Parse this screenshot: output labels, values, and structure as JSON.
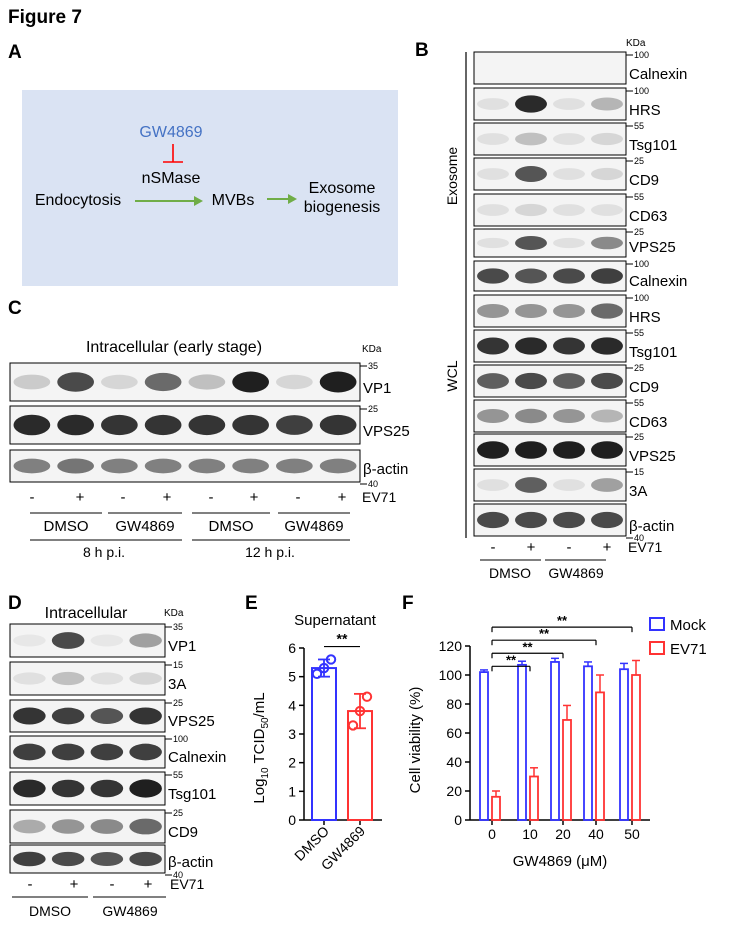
{
  "figure_title": "Figure 7",
  "panels": {
    "A": "A",
    "B": "B",
    "C": "C",
    "D": "D",
    "E": "E",
    "F": "F"
  },
  "panelA": {
    "inhibitor": "GW4869",
    "enzyme": "nSMase",
    "start": "Endocytosis",
    "middle": "MVBs",
    "end_line1": "Exosome",
    "end_line2": "biogenesis",
    "colors": {
      "box": "#dae3f3",
      "inhibitor": "#4472c4",
      "arrow": "#70ad47",
      "inhibit": "#ff0000"
    }
  },
  "panelB": {
    "kda": "KDa",
    "group_exosome": "Exosome",
    "group_wcl": "WCL",
    "rows": [
      {
        "label": "Calnexin",
        "marker": "100"
      },
      {
        "label": "HRS",
        "marker": "100"
      },
      {
        "label": "Tsg101",
        "marker": "55"
      },
      {
        "label": "CD9",
        "marker": "25"
      },
      {
        "label": "CD63",
        "marker": "55"
      },
      {
        "label": "VPS25",
        "marker": "25"
      },
      {
        "label": "Calnexin",
        "marker": "100"
      },
      {
        "label": "HRS",
        "marker": "100"
      },
      {
        "label": "Tsg101",
        "marker": "55"
      },
      {
        "label": "CD9",
        "marker": "25"
      },
      {
        "label": "CD63",
        "marker": "55"
      },
      {
        "label": "VPS25",
        "marker": "25"
      },
      {
        "label": "3A",
        "marker": "15"
      },
      {
        "label": "β-actin",
        "marker": "40"
      }
    ],
    "lanes": [
      "-",
      "+",
      "-",
      "+"
    ],
    "virus": "EV71",
    "groups": [
      "DMSO",
      "GW4869"
    ]
  },
  "panelC": {
    "title": "Intracellular (early stage)",
    "kda": "KDa",
    "rows": [
      {
        "label": "VP1",
        "marker": "35"
      },
      {
        "label": "VPS25",
        "marker": "25"
      },
      {
        "label": "β-actin",
        "marker": "40"
      }
    ],
    "lanes": [
      "-",
      "+",
      "-",
      "+",
      "-",
      "+",
      "-",
      "+"
    ],
    "virus": "EV71",
    "groups": [
      "DMSO",
      "GW4869",
      "DMSO",
      "GW4869"
    ],
    "times": [
      "8 h p.i.",
      "12 h p.i."
    ]
  },
  "panelD": {
    "title": "Intracellular",
    "kda": "KDa",
    "rows": [
      {
        "label": "VP1",
        "marker": "35"
      },
      {
        "label": "3A",
        "marker": "15"
      },
      {
        "label": "VPS25",
        "marker": "25"
      },
      {
        "label": "Calnexin",
        "marker": "100"
      },
      {
        "label": "Tsg101",
        "marker": "55"
      },
      {
        "label": "CD9",
        "marker": "25"
      },
      {
        "label": "β-actin",
        "marker": "40"
      }
    ],
    "lanes": [
      "-",
      "+",
      "-",
      "+"
    ],
    "virus": "EV71",
    "groups": [
      "DMSO",
      "GW4869"
    ]
  },
  "chart_data": [
    {
      "type": "bar",
      "title": "Supernatant",
      "ylabel_main": "Log",
      "ylabel_sub1": "10",
      "ylabel_mid": " TCID",
      "ylabel_sub2": "50",
      "ylabel_end": "/mL",
      "categories": [
        "DMSO",
        "GW4869"
      ],
      "values": [
        5.3,
        3.8
      ],
      "errors": [
        0.3,
        0.6
      ],
      "points": [
        [
          5.1,
          5.3,
          5.6
        ],
        [
          3.3,
          3.8,
          4.3
        ]
      ],
      "ylim": [
        0,
        6
      ],
      "yticks": [
        "0",
        "1",
        "2",
        "3",
        "4",
        "5",
        "6"
      ],
      "significance": "**",
      "colors": [
        "#3333ff",
        "#ff3333"
      ]
    },
    {
      "type": "bar",
      "ylabel": "Cell viability (%)",
      "xlabel": "GW4869 (μM)",
      "categories": [
        "0",
        "10",
        "20",
        "40",
        "50"
      ],
      "ylim": [
        0,
        120
      ],
      "yticks": [
        "0",
        "20",
        "40",
        "60",
        "80",
        "100",
        "120"
      ],
      "series": [
        {
          "name": "Mock",
          "values": [
            102,
            107,
            109,
            106,
            104
          ],
          "errors": [
            1.5,
            2.5,
            2.5,
            3,
            4
          ],
          "color": "#3333ff"
        },
        {
          "name": "EV71",
          "values": [
            16,
            30,
            69,
            88,
            100
          ],
          "errors": [
            4,
            6,
            10,
            12,
            10
          ],
          "color": "#ff3333"
        }
      ],
      "significance": [
        "**",
        "**",
        "**",
        "**"
      ],
      "legend": "top-right"
    }
  ]
}
